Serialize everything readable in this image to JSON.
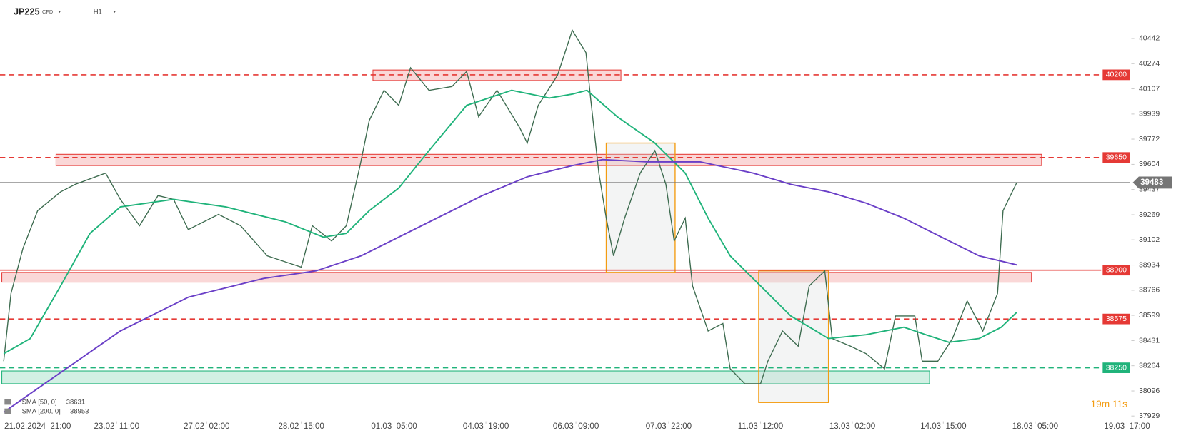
{
  "header": {
    "symbol": "JP225",
    "instrument_type": "CFD",
    "timeframe": "H1"
  },
  "chart_data": {
    "type": "line",
    "xlim": [
      -0.41,
      11.89
    ],
    "ylim": [
      37894,
      40697
    ],
    "xticks": [
      {
        "value": 0,
        "label": "21.02.2024  21:00"
      },
      {
        "value": 0.86,
        "label": "23.02  11:00"
      },
      {
        "value": 1.84,
        "label": "27.02  02:00"
      },
      {
        "value": 2.87,
        "label": "28.02  15:00"
      },
      {
        "value": 3.88,
        "label": "01.03  05:00"
      },
      {
        "value": 4.88,
        "label": "04.03  19:00"
      },
      {
        "value": 5.86,
        "label": "06.03  09:00"
      },
      {
        "value": 6.87,
        "label": "07.03  22:00"
      },
      {
        "value": 7.87,
        "label": "11.03  12:00"
      },
      {
        "value": 8.87,
        "label": "13.03  02:00"
      },
      {
        "value": 9.86,
        "label": "14.03  15:00"
      },
      {
        "value": 10.86,
        "label": "18.03  05:00"
      },
      {
        "value": 11.86,
        "label": "19.03  17:00"
      }
    ],
    "yticks": [
      40442,
      40274,
      40107,
      39939,
      39772,
      39604,
      39437,
      39269,
      39102,
      38934,
      38766,
      38599,
      38431,
      38264,
      38096,
      37929
    ],
    "series": [
      {
        "color": "#3d6b4f",
        "x": [
          -0.37,
          -0.29,
          -0.16,
          0,
          0.25,
          0.41,
          0.74,
          0.9,
          1.11,
          1.31,
          1.48,
          1.64,
          1.97,
          2.21,
          2.5,
          2.87,
          2.99,
          3.2,
          3.36,
          3.51,
          3.61,
          3.77,
          3.93,
          4.06,
          4.26,
          4.51,
          4.67,
          4.8,
          5,
          5.25,
          5.33,
          5.45,
          5.66,
          5.82,
          5.97,
          6.02,
          6.11,
          6.19,
          6.27,
          6.39,
          6.56,
          6.72,
          6.84,
          6.93,
          7.05,
          7.13,
          7.3,
          7.46,
          7.54,
          7.7,
          7.87,
          7.95,
          8.11,
          8.28,
          8.4,
          8.57,
          8.65,
          8.85,
          9.02,
          9.22,
          9.34,
          9.55,
          9.63,
          9.8,
          9.96,
          10.12,
          10.29,
          10.45,
          10.51,
          10.61,
          10.66
        ],
        "values": [
          38294,
          38745,
          39045,
          39296,
          39421,
          39471,
          39546,
          39371,
          39196,
          39396,
          39371,
          39170,
          39271,
          39196,
          38995,
          38920,
          39196,
          39095,
          39196,
          39596,
          39896,
          40097,
          39997,
          40247,
          40097,
          40122,
          40222,
          39921,
          40097,
          39846,
          39746,
          39997,
          40197,
          40497,
          40347,
          40046,
          39546,
          39246,
          38995,
          39246,
          39546,
          39696,
          39471,
          39095,
          39246,
          38795,
          38495,
          38545,
          38244,
          38144,
          38144,
          38294,
          38495,
          38394,
          38795,
          38895,
          38445,
          38394,
          38344,
          38244,
          38595,
          38595,
          38294,
          38294,
          38445,
          38695,
          38495,
          38745,
          39296,
          39421,
          39483
        ]
      },
      {
        "name": "SMA [50, 0]",
        "legend_value": 38631,
        "color": "#1fb37a",
        "x": [
          -0.37,
          -0.08,
          0.25,
          0.57,
          0.9,
          1.48,
          2.05,
          2.7,
          3.11,
          3.36,
          3.61,
          3.93,
          4.26,
          4.67,
          5.16,
          5.57,
          5.82,
          5.98,
          6.31,
          6.72,
          7.05,
          7.3,
          7.54,
          7.87,
          8.2,
          8.61,
          9.02,
          9.43,
          9.67,
          9.92,
          10.25,
          10.49,
          10.66
        ],
        "values": [
          38344,
          38445,
          38795,
          39145,
          39321,
          39371,
          39321,
          39221,
          39120,
          39145,
          39296,
          39446,
          39696,
          39997,
          40097,
          40046,
          40072,
          40097,
          39921,
          39746,
          39546,
          39246,
          38995,
          38795,
          38595,
          38445,
          38470,
          38520,
          38470,
          38420,
          38445,
          38520,
          38620
        ]
      },
      {
        "name": "SMA [200, 0]",
        "legend_value": 38953,
        "color": "#6a3fc7",
        "x": [
          -0.37,
          0.25,
          0.9,
          1.64,
          2.46,
          3.03,
          3.52,
          4.18,
          4.84,
          5.33,
          5.82,
          6.15,
          6.64,
          7.21,
          7.79,
          8.2,
          8.61,
          9.02,
          9.43,
          9.84,
          10.25,
          10.66
        ],
        "values": [
          37954,
          38219,
          38495,
          38720,
          38845,
          38895,
          38995,
          39196,
          39396,
          39521,
          39596,
          39636,
          39621,
          39621,
          39546,
          39471,
          39421,
          39346,
          39246,
          39120,
          38995,
          38935
        ]
      }
    ],
    "levels": [
      {
        "value": 40200,
        "color": "#e53935",
        "style": "dashed"
      },
      {
        "value": 39650,
        "color": "#e53935",
        "style": "dashed"
      },
      {
        "value": 38900,
        "color": "#e53935",
        "style": "solid"
      },
      {
        "value": 38575,
        "color": "#e53935",
        "style": "dashed"
      },
      {
        "value": 38250,
        "color": "#1fb37a",
        "style": "dashed"
      },
      {
        "value": 39483,
        "color": "#757575",
        "style": "solid"
      }
    ],
    "zones": [
      {
        "x": [
          3.65,
          6.35
        ],
        "y": [
          40162,
          40232
        ],
        "color": "#e53935"
      },
      {
        "x": [
          0.2,
          10.93
        ],
        "y": [
          39596,
          39671
        ],
        "color": "#e53935"
      },
      {
        "x": [
          -0.39,
          10.82
        ],
        "y": [
          38820,
          38885
        ],
        "color": "#e53935"
      },
      {
        "x": [
          -0.39,
          9.71
        ],
        "y": [
          38144,
          38229
        ],
        "color": "#1fb37a"
      }
    ],
    "boxes": [
      {
        "x": [
          6.19,
          6.94
        ],
        "y": [
          38885,
          39746
        ],
        "color": "#f39c12"
      },
      {
        "x": [
          7.85,
          8.61
        ],
        "y": [
          38019,
          38895
        ],
        "color": "#f39c12"
      }
    ],
    "countdown": "19m 11s"
  }
}
